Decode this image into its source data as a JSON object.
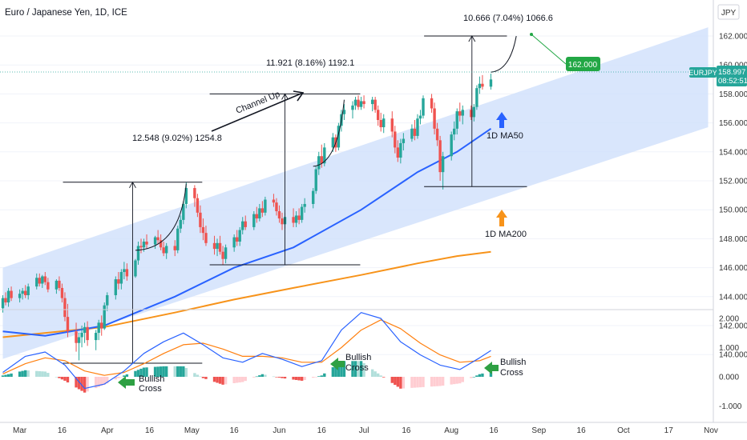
{
  "header": {
    "title": "Euro / Japanese Yen, 1D, ICE",
    "currency": "JPY"
  },
  "price_axis": {
    "symbol": "EURJPY",
    "last_price": "158.997",
    "countdown": "08:52:51",
    "target_label": "162.000",
    "ticks": [
      "162.000",
      "160.000",
      "158.000",
      "156.000",
      "154.000",
      "152.000",
      "150.000",
      "148.000",
      "146.000",
      "144.000",
      "142.000",
      "140.000"
    ]
  },
  "macd_axis": {
    "ticks": [
      "2.000",
      "1.000",
      "0.000",
      "-1.000"
    ]
  },
  "time_axis": {
    "ticks": [
      "Mar",
      "16",
      "Apr",
      "16",
      "May",
      "16",
      "Jun",
      "16",
      "Jul",
      "16",
      "Aug",
      "16",
      "Sep",
      "16",
      "Oct",
      "17",
      "Nov"
    ]
  },
  "annotations": {
    "channel": "Channel Up",
    "move1": "12.548 (9.02%) 1254.8",
    "move2": "11.921 (8.16%) 1192.1",
    "move3": "10.666 (7.04%) 1066.6",
    "ma50": "1D MA50",
    "ma200": "1D MA200",
    "bull1": [
      "Bullish",
      "Cross"
    ],
    "bull2": [
      "Bullish",
      "Cross"
    ],
    "bull3": [
      "Bullish",
      "Cross"
    ]
  },
  "colors": {
    "up": "#26a69a",
    "down": "#ef5350",
    "channel": "#cfe0fb",
    "ma50": "#2962ff",
    "ma200": "#f7931a",
    "target": "#22a745",
    "macd": "#2962ff",
    "signal": "#ff7f0e",
    "bull_arrow": "#2ea043"
  },
  "chart_data": {
    "type": "candlestick",
    "title": "Euro / Japanese Yen, 1D, ICE",
    "y_unit": "JPY",
    "ylim": [
      139,
      163
    ],
    "x_range": [
      "2021-02-22",
      "2021-11-05"
    ],
    "candles": [
      [
        "02-23",
        143.2,
        144.1,
        142.9,
        143.9
      ],
      [
        "02-24",
        143.9,
        144.3,
        143.4,
        143.6
      ],
      [
        "02-25",
        143.6,
        144.6,
        143.3,
        144.4
      ],
      [
        "02-26",
        144.4,
        144.7,
        143.7,
        143.9
      ],
      [
        "03-01",
        143.9,
        144.5,
        143.6,
        144.2
      ],
      [
        "03-02",
        144.2,
        144.6,
        143.8,
        144.4
      ],
      [
        "03-03",
        144.4,
        144.8,
        143.9,
        144.1
      ],
      [
        "03-04",
        144.1,
        144.9,
        143.8,
        144.7
      ],
      [
        "03-07",
        144.7,
        145.6,
        144.5,
        145.3
      ],
      [
        "03-08",
        145.3,
        145.6,
        144.7,
        144.9
      ],
      [
        "03-09",
        144.9,
        145.5,
        144.6,
        145.4
      ],
      [
        "03-10",
        145.4,
        145.7,
        144.8,
        145.0
      ],
      [
        "03-11",
        145.0,
        145.3,
        144.3,
        144.5
      ],
      [
        "03-14",
        144.5,
        145.2,
        144.2,
        145.1
      ],
      [
        "03-15",
        145.1,
        145.4,
        144.4,
        144.6
      ],
      [
        "03-16",
        144.6,
        144.9,
        143.6,
        143.9
      ],
      [
        "03-17",
        143.9,
        144.3,
        142.3,
        142.6
      ],
      [
        "03-18",
        142.6,
        143.5,
        141.2,
        141.6
      ],
      [
        "03-21",
        141.6,
        142.2,
        140.2,
        140.8
      ],
      [
        "03-22",
        140.8,
        141.5,
        139.6,
        141.2
      ],
      [
        "03-23",
        141.2,
        142.0,
        140.5,
        141.5
      ],
      [
        "03-24",
        141.5,
        142.2,
        140.8,
        141.9
      ],
      [
        "03-25",
        141.9,
        142.3,
        140.6,
        141.0
      ],
      [
        "03-28",
        141.0,
        141.7,
        140.3,
        141.5
      ],
      [
        "03-29",
        141.5,
        142.4,
        141.0,
        142.2
      ],
      [
        "03-30",
        142.2,
        142.7,
        141.3,
        141.8
      ],
      [
        "03-31",
        141.8,
        143.6,
        141.7,
        143.4
      ],
      [
        "04-01",
        143.4,
        144.3,
        143.0,
        144.1
      ],
      [
        "04-04",
        144.1,
        145.4,
        143.8,
        145.2
      ],
      [
        "04-05",
        145.2,
        145.7,
        144.5,
        144.9
      ],
      [
        "04-06",
        144.9,
        145.9,
        144.5,
        145.7
      ],
      [
        "04-07",
        145.7,
        146.4,
        145.2,
        145.9
      ],
      [
        "04-08",
        145.9,
        146.3,
        145.1,
        145.4
      ],
      [
        "04-11",
        145.4,
        146.6,
        145.3,
        146.5
      ],
      [
        "04-12",
        146.5,
        147.8,
        146.2,
        147.5
      ],
      [
        "04-13",
        147.5,
        148.0,
        147.0,
        147.4
      ],
      [
        "04-14",
        147.4,
        148.0,
        147.1,
        147.8
      ],
      [
        "04-15",
        147.8,
        148.3,
        147.3,
        147.6
      ],
      [
        "04-18",
        147.6,
        148.2,
        147.3,
        148.1
      ],
      [
        "04-19",
        148.1,
        148.6,
        147.6,
        147.9
      ],
      [
        "04-20",
        147.9,
        148.3,
        147.2,
        147.4
      ],
      [
        "04-21",
        147.4,
        147.8,
        146.8,
        147.0
      ],
      [
        "04-22",
        147.0,
        147.7,
        146.6,
        147.5
      ],
      [
        "04-25",
        147.5,
        147.9,
        146.8,
        147.2
      ],
      [
        "04-26",
        147.2,
        148.9,
        147.0,
        148.7
      ],
      [
        "04-27",
        148.7,
        149.6,
        148.4,
        149.3
      ],
      [
        "04-28",
        149.3,
        150.6,
        149.0,
        150.4
      ],
      [
        "04-29",
        150.4,
        151.9,
        150.1,
        151.5
      ],
      [
        "05-02",
        151.5,
        151.7,
        150.2,
        150.8
      ],
      [
        "05-03",
        150.8,
        151.1,
        149.5,
        149.8
      ],
      [
        "05-04",
        149.8,
        150.3,
        148.4,
        148.8
      ],
      [
        "05-05",
        148.8,
        149.4,
        147.9,
        148.4
      ],
      [
        "05-06",
        148.4,
        148.9,
        147.5,
        147.7
      ],
      [
        "05-09",
        147.7,
        148.2,
        146.9,
        147.3
      ],
      [
        "05-10",
        147.3,
        148.0,
        146.8,
        147.7
      ],
      [
        "05-11",
        147.7,
        148.2,
        146.9,
        147.1
      ],
      [
        "05-12",
        147.1,
        147.5,
        146.2,
        146.6
      ],
      [
        "05-13",
        146.6,
        147.6,
        146.3,
        147.4
      ],
      [
        "05-16",
        147.4,
        148.3,
        147.1,
        148.1
      ],
      [
        "05-17",
        148.1,
        148.6,
        147.5,
        147.8
      ],
      [
        "05-18",
        147.8,
        148.8,
        147.5,
        148.6
      ],
      [
        "05-19",
        148.6,
        149.5,
        148.3,
        149.2
      ],
      [
        "05-20",
        149.2,
        149.6,
        148.6,
        148.8
      ],
      [
        "05-23",
        148.8,
        149.9,
        148.6,
        149.7
      ],
      [
        "05-24",
        149.7,
        150.2,
        149.1,
        149.4
      ],
      [
        "05-25",
        149.4,
        150.4,
        149.2,
        150.1
      ],
      [
        "05-26",
        150.1,
        150.6,
        149.5,
        149.8
      ],
      [
        "05-27",
        149.8,
        150.9,
        149.6,
        150.7
      ],
      [
        "05-30",
        150.7,
        151.1,
        150.2,
        150.5
      ],
      [
        "05-31",
        150.5,
        150.8,
        149.6,
        149.9
      ],
      [
        "06-01",
        149.9,
        150.3,
        149.1,
        149.4
      ],
      [
        "06-02",
        149.4,
        149.8,
        148.6,
        149.0
      ],
      [
        "06-03",
        149.0,
        149.8,
        148.7,
        149.5
      ],
      [
        "06-06",
        149.5,
        150.1,
        148.8,
        149.1
      ],
      [
        "06-07",
        149.1,
        149.9,
        148.8,
        149.6
      ],
      [
        "06-08",
        149.6,
        150.1,
        149.0,
        149.3
      ],
      [
        "06-09",
        149.3,
        150.4,
        149.1,
        150.2
      ],
      [
        "06-10",
        150.2,
        150.8,
        149.8,
        150.4
      ],
      [
        "06-13",
        150.4,
        151.5,
        150.1,
        151.3
      ],
      [
        "06-14",
        151.3,
        153.0,
        151.1,
        152.8
      ],
      [
        "06-15",
        152.8,
        154.0,
        152.4,
        153.7
      ],
      [
        "06-16",
        153.7,
        154.5,
        152.9,
        153.2
      ],
      [
        "06-17",
        153.2,
        154.6,
        153.0,
        154.3
      ],
      [
        "06-20",
        154.3,
        155.3,
        154.0,
        155.0
      ],
      [
        "06-21",
        155.0,
        155.2,
        154.0,
        154.3
      ],
      [
        "06-22",
        154.3,
        156.0,
        154.1,
        155.8
      ],
      [
        "06-23",
        155.8,
        156.9,
        155.4,
        156.6
      ],
      [
        "06-24",
        156.6,
        157.3,
        156.2,
        156.9
      ],
      [
        "06-27",
        156.9,
        157.5,
        156.3,
        157.2
      ],
      [
        "06-28",
        157.2,
        157.8,
        156.9,
        157.6
      ],
      [
        "06-29",
        157.6,
        157.9,
        156.9,
        157.1
      ],
      [
        "06-30",
        157.1,
        157.8,
        156.9,
        157.5
      ],
      [
        "07-01",
        157.5,
        157.9,
        157.0,
        157.3
      ],
      [
        "07-04",
        157.3,
        157.8,
        156.8,
        157.6
      ],
      [
        "07-05",
        157.6,
        157.8,
        156.7,
        156.9
      ],
      [
        "07-06",
        156.9,
        157.2,
        155.8,
        156.2
      ],
      [
        "07-07",
        156.2,
        156.7,
        155.4,
        155.7
      ],
      [
        "07-08",
        155.7,
        156.6,
        155.3,
        156.3
      ],
      [
        "07-11",
        156.3,
        156.8,
        155.0,
        155.4
      ],
      [
        "07-12",
        155.4,
        155.8,
        153.9,
        154.3
      ],
      [
        "07-13",
        154.3,
        154.8,
        153.3,
        153.6
      ],
      [
        "07-14",
        153.6,
        154.9,
        153.2,
        154.6
      ],
      [
        "07-15",
        154.6,
        155.3,
        154.1,
        154.9
      ],
      [
        "07-18",
        154.9,
        155.9,
        154.7,
        155.6
      ],
      [
        "07-19",
        155.6,
        156.2,
        154.8,
        155.1
      ],
      [
        "07-20",
        155.1,
        156.6,
        154.9,
        156.3
      ],
      [
        "07-21",
        156.3,
        156.9,
        155.9,
        156.5
      ],
      [
        "07-22",
        156.5,
        157.9,
        156.3,
        157.7
      ],
      [
        "07-25",
        157.7,
        158.0,
        156.7,
        157.0
      ],
      [
        "07-26",
        157.0,
        157.4,
        155.2,
        155.6
      ],
      [
        "07-27",
        155.6,
        156.0,
        154.4,
        154.8
      ],
      [
        "07-28",
        154.8,
        155.1,
        152.0,
        152.6
      ],
      [
        "07-29",
        152.6,
        154.0,
        151.4,
        153.7
      ],
      [
        "08-01",
        153.7,
        155.4,
        153.4,
        155.2
      ],
      [
        "08-02",
        155.2,
        156.1,
        154.8,
        155.6
      ],
      [
        "08-03",
        155.6,
        157.0,
        155.2,
        156.8
      ],
      [
        "08-04",
        156.8,
        157.4,
        156.1,
        156.5
      ],
      [
        "08-05",
        156.5,
        157.2,
        155.9,
        156.9
      ],
      [
        "08-08",
        156.9,
        157.2,
        156.2,
        156.4
      ],
      [
        "08-09",
        156.4,
        157.3,
        156.1,
        157.1
      ],
      [
        "08-10",
        157.1,
        158.6,
        156.9,
        158.4
      ],
      [
        "08-11",
        158.4,
        159.2,
        158.0,
        158.7
      ],
      [
        "08-12",
        158.7,
        159.3,
        158.3,
        158.5
      ],
      [
        "08-15",
        158.5,
        159.4,
        158.3,
        159.0
      ]
    ],
    "series": [
      {
        "name": "1D MA50",
        "x": [
          "02-23",
          "03-10",
          "03-31",
          "04-25",
          "05-16",
          "06-06",
          "06-30",
          "07-20",
          "08-03",
          "08-15"
        ],
        "y": [
          141.6,
          141.3,
          142.0,
          144.0,
          146.0,
          147.4,
          150.0,
          152.6,
          154.0,
          155.6
        ]
      },
      {
        "name": "1D MA200",
        "x": [
          "02-23",
          "03-31",
          "04-25",
          "05-16",
          "06-06",
          "06-30",
          "07-20",
          "08-03",
          "08-15"
        ],
        "y": [
          141.2,
          141.9,
          142.9,
          143.8,
          144.6,
          145.5,
          146.3,
          146.8,
          147.1
        ]
      }
    ],
    "channel": {
      "upper": [
        [
          "02-23",
          146.0
        ],
        [
          "10-31",
          162.6
        ]
      ],
      "lower": [
        [
          "02-23",
          139.7
        ],
        [
          "10-31",
          155.7
        ]
      ]
    },
    "measurements": [
      {
        "from": [
          "03-22",
          139.4
        ],
        "to": [
          "04-29",
          151.9
        ],
        "value": "12.548 (9.02%) 1254.8"
      },
      {
        "from": [
          "05-13",
          146.2
        ],
        "to": [
          "06-24",
          158.0
        ],
        "value": "11.921 (8.16%) 1192.1"
      },
      {
        "from": [
          "07-28",
          151.6
        ],
        "to": [
          "08-15",
          162.0
        ],
        "value": "10.666 (7.04%) 1066.6"
      }
    ],
    "target": {
      "x": "08-24",
      "y": 162.0,
      "label": "162.000"
    },
    "macd": {
      "ylim": [
        -1.2,
        2.3
      ],
      "x": [
        "02-23",
        "03-03",
        "03-10",
        "03-17",
        "03-24",
        "03-31",
        "04-07",
        "04-14",
        "04-21",
        "04-28",
        "05-05",
        "05-12",
        "05-19",
        "05-26",
        "06-02",
        "06-09",
        "06-16",
        "06-23",
        "06-30",
        "07-07",
        "07-14",
        "07-21",
        "07-28",
        "08-04",
        "08-11",
        "08-15"
      ],
      "macd": [
        0.15,
        0.7,
        0.85,
        0.4,
        -0.4,
        -0.25,
        0.2,
        0.8,
        1.2,
        1.5,
        1.1,
        0.65,
        0.5,
        0.8,
        0.6,
        0.35,
        0.55,
        1.6,
        2.2,
        2.0,
        1.2,
        0.75,
        0.4,
        0.25,
        0.65,
        0.9
      ],
      "signal": [
        0.1,
        0.45,
        0.65,
        0.55,
        0.2,
        0.05,
        0.15,
        0.45,
        0.8,
        1.1,
        1.15,
        0.95,
        0.7,
        0.7,
        0.65,
        0.5,
        0.5,
        1.0,
        1.6,
        1.95,
        1.65,
        1.15,
        0.75,
        0.5,
        0.55,
        0.7
      ]
    }
  }
}
